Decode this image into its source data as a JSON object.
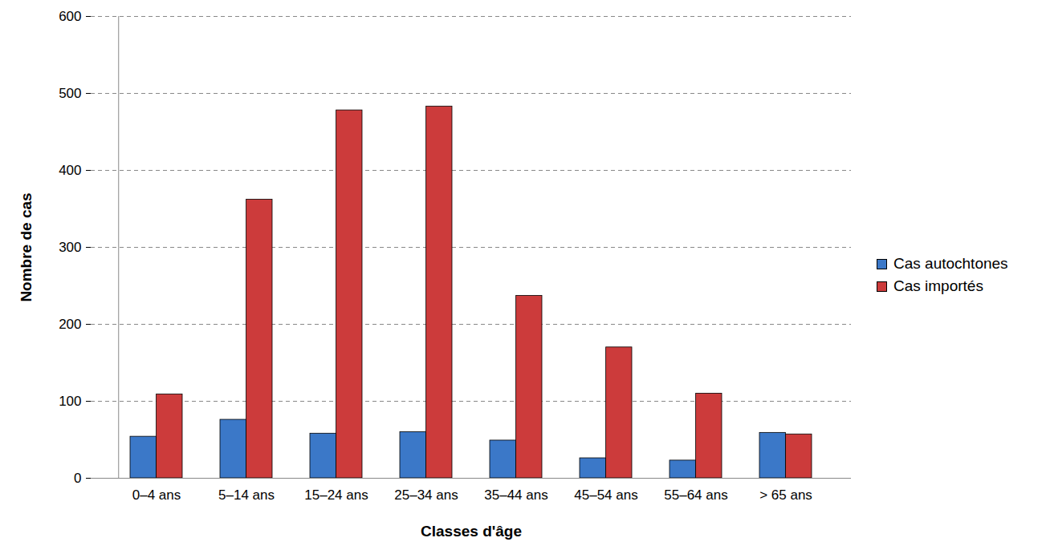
{
  "chart_data": {
    "type": "bar",
    "x_label": "Classes d'âge",
    "y_label": "Nombre de cas",
    "categories": [
      "0–4 ans",
      "5–14 ans",
      "15–24 ans",
      "25–34 ans",
      "35–44 ans",
      "45–54 ans",
      "55–64 ans",
      "> 65 ans"
    ],
    "series": [
      {
        "name": "Cas autochtones",
        "color": "#3b78c8",
        "values": [
          54,
          76,
          58,
          60,
          49,
          26,
          23,
          59
        ]
      },
      {
        "name": "Cas importés",
        "color": "#cc3b3b",
        "values": [
          109,
          362,
          478,
          483,
          237,
          170,
          110,
          57
        ]
      }
    ],
    "ylim": [
      0,
      600
    ],
    "yticks": [
      0,
      100,
      200,
      300,
      400,
      500,
      600
    ],
    "grid": true,
    "legend": "right"
  }
}
